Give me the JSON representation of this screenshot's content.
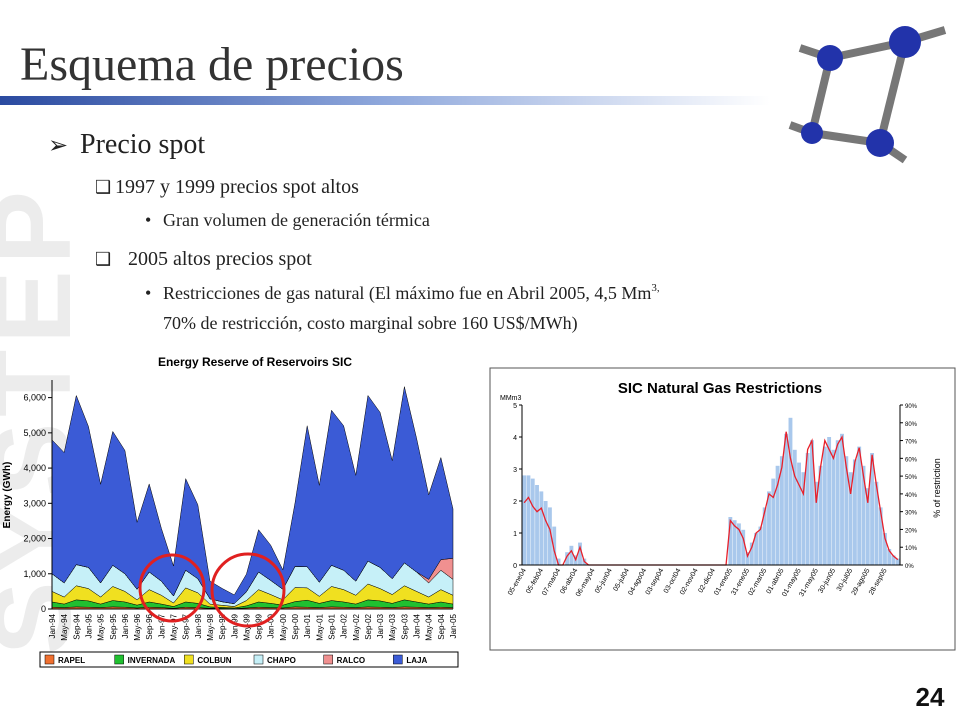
{
  "watermark": "SYSTEP",
  "title": "Esquema de precios",
  "bullets": {
    "level1": "Precio spot",
    "items": [
      {
        "text": "1997 y 1999 precios spot altos",
        "sub": "Gran volumen de generación térmica"
      },
      {
        "text": "2005 altos precios spot",
        "sub_line1": "Restricciones de gas natural (El máximo fue en Abril 2005, 4,5 Mm",
        "sub_sup": "3,",
        "sub_line2": "70% de restricción, costo marginal sobre 160 US$/MWh)"
      }
    ]
  },
  "page_number": "24",
  "chart_data": [
    {
      "type": "stacked-area",
      "title": "Energy Reserve of Reservoirs SIC",
      "y_label": "Energy  (GWh)",
      "categories": [
        "Jan-94",
        "May-94",
        "Sep-94",
        "Jan-95",
        "May-95",
        "Sep-95",
        "Jan-96",
        "May-96",
        "Sep-96",
        "Jan-97",
        "May-97",
        "Sep-97",
        "Jan-98",
        "May-98",
        "Sep-98",
        "Jan-99",
        "May-99",
        "Sep-99",
        "Jan-00",
        "May-00",
        "Sep-00",
        "Jan-01",
        "May-01",
        "Sep-01",
        "Jan-02",
        "May-02",
        "Sep-02",
        "Jan-03",
        "May-03",
        "Sep-03",
        "Jan-04",
        "May-04",
        "Sep-04",
        "Jan-05"
      ],
      "series": [
        {
          "name": "RAPEL",
          "color": "#f07030",
          "values": [
            50,
            40,
            60,
            50,
            40,
            60,
            50,
            30,
            50,
            40,
            20,
            50,
            40,
            20,
            15,
            10,
            30,
            50,
            40,
            30,
            60,
            50,
            40,
            60,
            50,
            40,
            60,
            50,
            40,
            60,
            50,
            40,
            50,
            40
          ]
        },
        {
          "name": "INVERNADA",
          "color": "#20c030",
          "values": [
            150,
            100,
            200,
            180,
            100,
            180,
            150,
            80,
            150,
            100,
            50,
            150,
            120,
            40,
            30,
            20,
            60,
            150,
            120,
            80,
            150,
            200,
            120,
            180,
            150,
            100,
            200,
            180,
            120,
            200,
            150,
            100,
            150,
            100
          ]
        },
        {
          "name": "COLBUN",
          "color": "#f0e020",
          "values": [
            300,
            200,
            400,
            350,
            200,
            400,
            300,
            150,
            350,
            250,
            100,
            400,
            300,
            80,
            60,
            40,
            150,
            350,
            250,
            150,
            400,
            350,
            200,
            400,
            350,
            250,
            450,
            350,
            250,
            400,
            300,
            200,
            350,
            250
          ]
        },
        {
          "name": "CHAPO",
          "color": "#c6f0f8",
          "values": [
            500,
            400,
            600,
            600,
            400,
            600,
            500,
            300,
            500,
            400,
            200,
            500,
            400,
            150,
            100,
            80,
            250,
            500,
            400,
            300,
            600,
            600,
            400,
            600,
            550,
            400,
            650,
            600,
            450,
            650,
            550,
            400,
            550,
            450
          ]
        },
        {
          "name": "RALCO",
          "color": "#f09090",
          "values": [
            0,
            0,
            0,
            0,
            0,
            0,
            0,
            0,
            0,
            0,
            0,
            0,
            0,
            0,
            0,
            0,
            0,
            0,
            0,
            0,
            0,
            0,
            0,
            0,
            0,
            0,
            0,
            0,
            0,
            0,
            0,
            100,
            300,
            600
          ]
        },
        {
          "name": "LAJA",
          "color": "#3b5bd6",
          "values": [
            3800,
            3700,
            4800,
            4000,
            2800,
            3800,
            3500,
            1900,
            2500,
            1500,
            850,
            2600,
            2100,
            500,
            380,
            250,
            500,
            1200,
            1000,
            550,
            1800,
            4000,
            2750,
            4400,
            4100,
            3000,
            4700,
            4400,
            3350,
            5000,
            3800,
            2400,
            2900,
            1400
          ]
        }
      ],
      "ylim": [
        0,
        6500
      ],
      "yticks": [
        0,
        {
          "value": 1000,
          "label": "1,000"
        },
        {
          "value": 2000,
          "label": "2,000"
        },
        {
          "value": 3000,
          "label": "3,000"
        },
        {
          "value": 4000,
          "label": "4,000"
        },
        {
          "value": 5000,
          "label": "5,000"
        },
        {
          "value": 6000,
          "label": "6,000"
        }
      ],
      "grid": false
    },
    {
      "type": "bar-line",
      "title": "SIC Natural Gas Restrictions",
      "y_label": "MMm3",
      "y2_label": "% of restriction",
      "categories": [
        "05-ene04",
        null,
        null,
        null,
        "05-feb04",
        null,
        null,
        null,
        "07-mar04",
        null,
        null,
        null,
        "06-abr04",
        null,
        null,
        null,
        "06-may04",
        null,
        null,
        null,
        "05-jun04",
        null,
        null,
        null,
        "05-jul04",
        null,
        null,
        null,
        "04-ago04",
        null,
        null,
        null,
        "03-sep04",
        null,
        null,
        null,
        "03-oct04",
        null,
        null,
        null,
        "02-nov04",
        null,
        null,
        null,
        "02-dic04",
        null,
        null,
        null,
        "01-ene05",
        null,
        null,
        null,
        "31-ene05",
        null,
        null,
        null,
        "02-mar05",
        null,
        null,
        null,
        "01-abr05",
        null,
        null,
        null,
        "01-may05",
        null,
        null,
        null,
        "31-may05",
        null,
        null,
        null,
        "30-jun05",
        null,
        null,
        null,
        "30-jul05",
        null,
        null,
        null,
        "29-ago05",
        null,
        null,
        null,
        "28-sep05",
        null,
        null,
        null
      ],
      "series": [
        {
          "name": "MMm3",
          "color": "#a9c8ec",
          "values": [
            2.8,
            2.8,
            2.7,
            2.5,
            2.3,
            2.0,
            1.8,
            1.2,
            0.2,
            0,
            0.4,
            0.6,
            0.3,
            0.7,
            0.2,
            0,
            0,
            0,
            0,
            0,
            0,
            0,
            0,
            0,
            0,
            0,
            0,
            0,
            0,
            0,
            0,
            0,
            0,
            0,
            0,
            0,
            0,
            0,
            0,
            0,
            0,
            0,
            0,
            0,
            0,
            0,
            0,
            0,
            1.5,
            1.4,
            1.3,
            1.1,
            0.4,
            0.7,
            1.0,
            1.2,
            1.8,
            2.3,
            2.7,
            3.1,
            3.4,
            4.1,
            4.6,
            3.6,
            3.2,
            2.9,
            3.5,
            3.9,
            2.6,
            3.1,
            3.7,
            4.0,
            3.6,
            3.9,
            4.1,
            3.4,
            2.9,
            3.3,
            3.7,
            3.1,
            2.4,
            3.5,
            2.6,
            1.8,
            1.0,
            0.5,
            0.3,
            0.2
          ]
        },
        {
          "name": "% of restriction",
          "color": "#e8202a",
          "axis": "y2",
          "values": [
            35,
            38,
            33,
            30,
            32,
            25,
            20,
            8,
            0,
            0,
            5,
            8,
            3,
            10,
            2,
            0,
            0,
            0,
            0,
            0,
            0,
            0,
            0,
            0,
            0,
            0,
            0,
            0,
            0,
            0,
            0,
            0,
            0,
            0,
            0,
            0,
            0,
            0,
            0,
            0,
            0,
            0,
            0,
            0,
            0,
            0,
            0,
            0,
            25,
            22,
            20,
            15,
            5,
            10,
            18,
            20,
            30,
            40,
            38,
            45,
            55,
            75,
            60,
            50,
            45,
            40,
            65,
            70,
            35,
            55,
            70,
            65,
            60,
            68,
            72,
            55,
            40,
            58,
            66,
            50,
            35,
            62,
            45,
            30,
            15,
            8,
            5,
            3
          ]
        }
      ],
      "ylim": [
        0,
        5
      ],
      "yticks": [
        0,
        1,
        2,
        3,
        4,
        5
      ],
      "y2lim": [
        0,
        90
      ],
      "y2ticks": [
        {
          "value": 0,
          "label": "0%"
        },
        {
          "value": 10,
          "label": "10%"
        },
        {
          "value": 20,
          "label": "20%"
        },
        {
          "value": 30,
          "label": "30%"
        },
        {
          "value": 40,
          "label": "40%"
        },
        {
          "value": 50,
          "label": "50%"
        },
        {
          "value": 60,
          "label": "60%"
        },
        {
          "value": 70,
          "label": "70%"
        },
        {
          "value": 80,
          "label": "80%"
        },
        {
          "value": 90,
          "label": "90%"
        }
      ],
      "grid": false
    }
  ]
}
